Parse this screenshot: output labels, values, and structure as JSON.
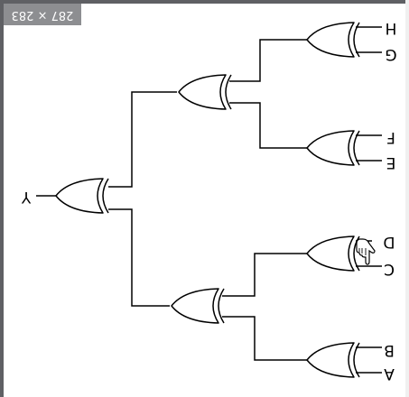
{
  "canvas": {
    "size_badge": "287 × 283",
    "background": "#ffffff",
    "badge_color": "#8d8e91",
    "frame_color": "#5f6064",
    "rotated": "180deg"
  },
  "diagram": {
    "gate_type": "XOR",
    "inputs": {
      "a": "A",
      "b": "B",
      "c": "C",
      "d": "D",
      "e": "E",
      "f": "F",
      "g": "G",
      "h": "H"
    },
    "output": "Y",
    "cursor": "hand-pointer-icon"
  }
}
